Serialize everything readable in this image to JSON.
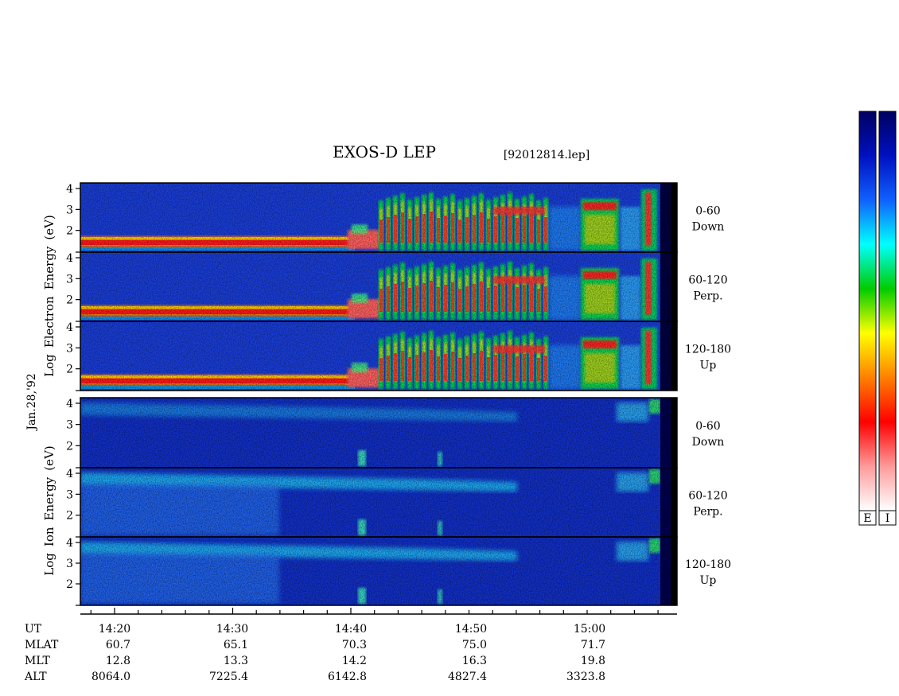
{
  "chart_data": {
    "type": "heatmap",
    "title": "EXOS-D LEP",
    "file_label": "[92012814.lep]",
    "date_label": "Jan.28,'92",
    "x_axis": {
      "ticks": [
        "14:20",
        "14:30",
        "14:40",
        "14:50",
        "15:00"
      ],
      "rows": [
        {
          "label": "UT",
          "values": []
        },
        {
          "label": "MLAT",
          "values": [
            "60.7",
            "65.1",
            "70.3",
            "75.0",
            "71.7"
          ]
        },
        {
          "label": "MLT",
          "values": [
            "12.8",
            "13.3",
            "14.2",
            "16.3",
            "19.8"
          ]
        },
        {
          "label": "ALT",
          "values": [
            "8064.0",
            "7225.4",
            "6142.8",
            "4827.4",
            "3323.8"
          ]
        }
      ]
    },
    "y_ticks": [
      "4",
      "3",
      "2"
    ],
    "electron": {
      "ylabel": [
        "Log",
        "Electron",
        "Energy",
        "(eV)"
      ],
      "panels": [
        {
          "label1": "0-60",
          "label2": "Down"
        },
        {
          "label1": "60-120",
          "label2": "Perp."
        },
        {
          "label1": "120-180",
          "label2": "Up"
        }
      ]
    },
    "ion": {
      "ylabel": [
        "Log",
        "Ion",
        "Energy",
        "(eV)"
      ],
      "panels": [
        {
          "label1": "0-60",
          "label2": "Down"
        },
        {
          "label1": "60-120",
          "label2": "Perp."
        },
        {
          "label1": "120-180",
          "label2": "Up"
        }
      ]
    },
    "colorbars": [
      {
        "label": "E"
      },
      {
        "label": "I"
      }
    ],
    "colorscale": [
      "#ffffff",
      "#ff9a9a",
      "#ff0000",
      "#ff8000",
      "#ffff00",
      "#00cc00",
      "#00ffff",
      "#1060ff",
      "#0010c0",
      "#000060"
    ]
  }
}
